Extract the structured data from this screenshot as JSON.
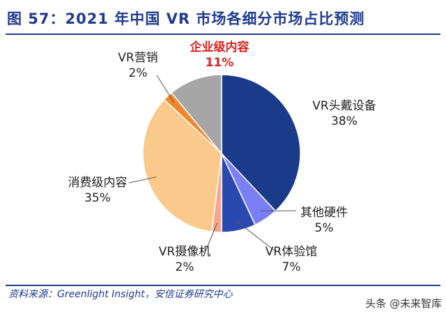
{
  "title": "图 57：2021 年中国 VR 市场各细分市场占比预测",
  "source": "资料来源：Greenlight Insight，安信证券研究中心",
  "watermark": "头条 @未来智库",
  "chart_data": {
    "type": "pie",
    "title": "图 57：2021 年中国 VR 市场各细分市场占比预测",
    "start_angle_deg": 0,
    "direction": "clockwise",
    "slices": [
      {
        "name": "VR头戴设备",
        "value": 38,
        "label": "38%",
        "color": "#1a3a8a",
        "highlight": false
      },
      {
        "name": "其他硬件",
        "value": 5,
        "label": "5%",
        "color": "#7b7ff5",
        "highlight": false
      },
      {
        "name": "VR体验馆",
        "value": 7,
        "label": "7%",
        "color": "#2a49b0",
        "highlight": false
      },
      {
        "name": "VR摄像机",
        "value": 2,
        "label": "2%",
        "color": "#f4a68e",
        "highlight": false
      },
      {
        "name": "消费级内容",
        "value": 35,
        "label": "35%",
        "color": "#fac98c",
        "highlight": false
      },
      {
        "name": "VR营销",
        "value": 2,
        "label": "2%",
        "color": "#f0862c",
        "highlight": false
      },
      {
        "name": "企业级内容",
        "value": 11,
        "label": "11%",
        "color": "#a6a6a6",
        "highlight": true
      }
    ]
  }
}
